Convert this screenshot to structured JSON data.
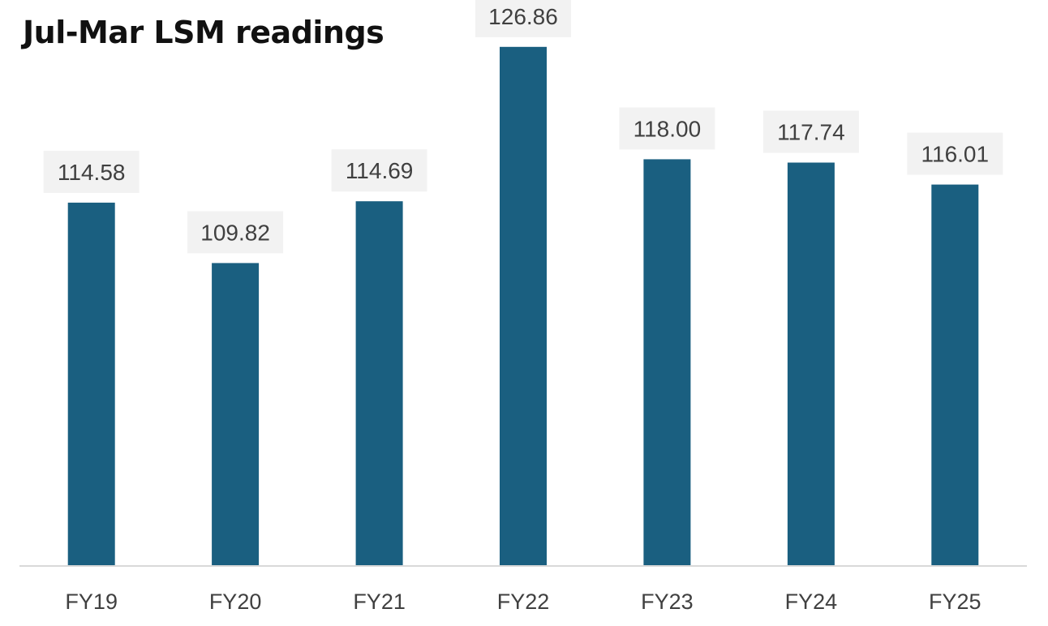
{
  "chart_data": {
    "type": "bar",
    "title": "Jul-Mar LSM readings",
    "categories": [
      "FY19",
      "FY20",
      "FY21",
      "FY22",
      "FY23",
      "FY24",
      "FY25"
    ],
    "series": [
      {
        "values": [
          114.58,
          109.82,
          114.69,
          126.86,
          118.0,
          117.74,
          116.01
        ],
        "labels": [
          "114.58",
          "109.82",
          "114.69",
          "126.86",
          "118.00",
          "117.74",
          "116.01"
        ]
      }
    ],
    "ylim": [
      86,
      128
    ],
    "grid": false,
    "legend": "none",
    "data_labels": true,
    "colors": {
      "bar": "#1a5f80",
      "label_box": "#f2f2f2",
      "axis": "#d9d9d9",
      "text": "#404040",
      "title": "#111111"
    }
  }
}
